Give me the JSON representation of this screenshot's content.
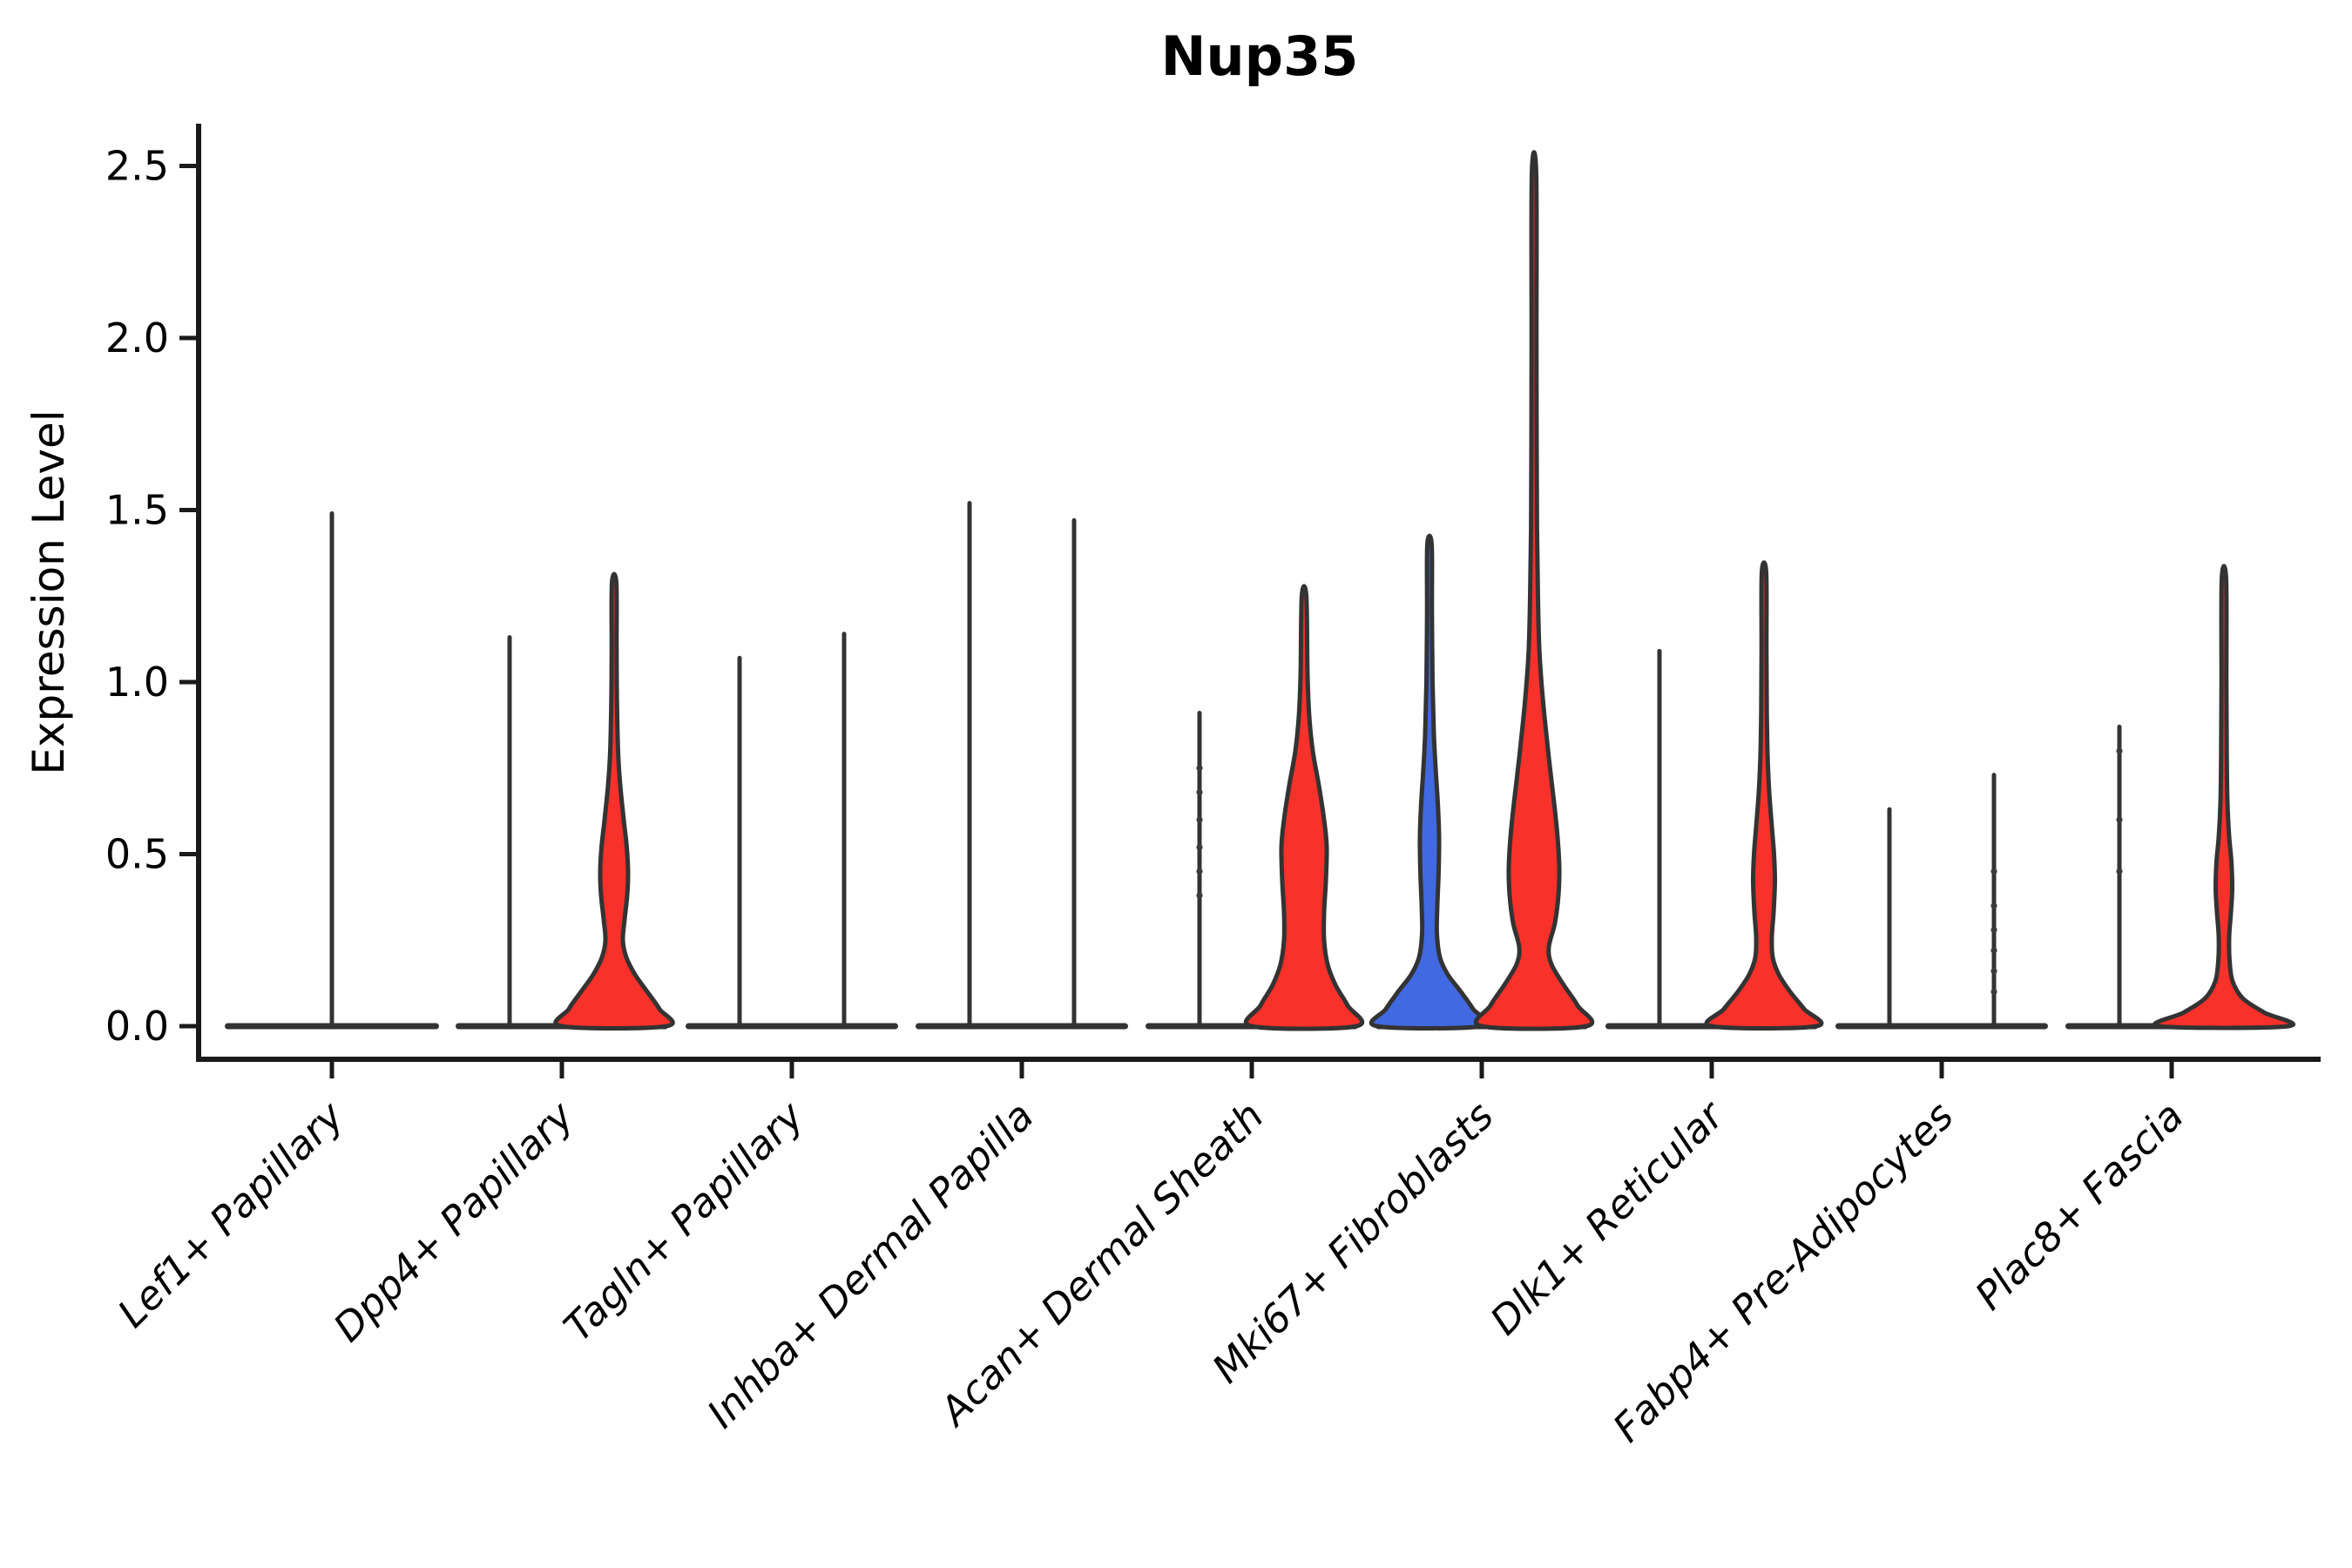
{
  "title": "Nup35",
  "axes": {
    "ylabel": "Expression Level",
    "ytick_labels": [
      "0.0",
      "0.5",
      "1.0",
      "1.5",
      "2.0",
      "2.5"
    ]
  },
  "chart_data": {
    "type": "violin",
    "title": "Nup35",
    "xlabel": "",
    "ylabel": "Expression Level",
    "ylim": [
      -0.095,
      2.62
    ],
    "yticks": [
      0.0,
      0.5,
      1.0,
      1.5,
      2.0,
      2.5
    ],
    "grid": false,
    "legend": "none",
    "colors": {
      "red": "#F8312A",
      "blue": "#4169E1",
      "outline": "#333333",
      "axis": "#1a1a1a"
    },
    "description": "Grouped violin plot of Nup35 expression per fibroblast cluster; each category holds two violins (left/right group). Most violins are collapsed to a thin spike over a flat zero-pancake; filled violins (red or blue) show density bulges. Values below are expression maxima and density half-width profiles [expression_value, half_width_px].",
    "categories": [
      {
        "label": "Lef1+ Papillary",
        "violins": [
          {
            "pos": "center",
            "kind": "spike",
            "fill": null,
            "max": 1.49,
            "dots": []
          }
        ]
      },
      {
        "label": "Dpp4+ Papillary",
        "violins": [
          {
            "pos": "left",
            "kind": "spike",
            "fill": null,
            "max": 1.13,
            "dots": []
          },
          {
            "pos": "right",
            "kind": "violin",
            "fill": "red",
            "max": 1.29,
            "profile": [
              [
                0,
                60
              ],
              [
                0.05,
                52
              ],
              [
                0.1,
                38
              ],
              [
                0.15,
                24
              ],
              [
                0.2,
                14
              ],
              [
                0.25,
                10
              ],
              [
                0.31,
                12
              ],
              [
                0.38,
                15
              ],
              [
                0.45,
                16
              ],
              [
                0.52,
                14.5
              ],
              [
                0.6,
                11
              ],
              [
                0.7,
                7
              ],
              [
                0.8,
                4.5
              ],
              [
                0.95,
                3.2
              ],
              [
                1.1,
                2.8
              ],
              [
                1.29,
                2.5
              ]
            ]
          }
        ]
      },
      {
        "label": "Tagln+ Papillary",
        "violins": [
          {
            "pos": "left",
            "kind": "spike",
            "fill": null,
            "max": 1.07,
            "dots": []
          },
          {
            "pos": "right",
            "kind": "spike",
            "fill": null,
            "max": 1.14,
            "dots": []
          }
        ]
      },
      {
        "label": "Inhba+ Dermal Papilla",
        "violins": [
          {
            "pos": "left",
            "kind": "spike",
            "fill": null,
            "max": 1.52,
            "dots": []
          },
          {
            "pos": "right",
            "kind": "spike",
            "fill": null,
            "max": 1.47,
            "dots": []
          }
        ]
      },
      {
        "label": "Acan+ Dermal Sheath",
        "violins": [
          {
            "pos": "left",
            "kind": "spike",
            "fill": null,
            "max": 0.91,
            "dots": [
              0.38,
              0.45,
              0.52,
              0.6,
              0.68,
              0.75
            ]
          },
          {
            "pos": "right",
            "kind": "violin",
            "fill": "red",
            "max": 1.25,
            "profile": [
              [
                0,
                60
              ],
              [
                0.06,
                50
              ],
              [
                0.12,
                36
              ],
              [
                0.18,
                27
              ],
              [
                0.25,
                23
              ],
              [
                0.33,
                23
              ],
              [
                0.42,
                25
              ],
              [
                0.52,
                26
              ],
              [
                0.6,
                23
              ],
              [
                0.7,
                17
              ],
              [
                0.8,
                10
              ],
              [
                0.9,
                6
              ],
              [
                1.02,
                4
              ],
              [
                1.25,
                2.6
              ]
            ]
          }
        ]
      },
      {
        "label": "Mki67+ Fibroblasts",
        "violins": [
          {
            "pos": "left",
            "kind": "violin",
            "fill": "blue",
            "max": 1.4,
            "profile": [
              [
                0,
                60
              ],
              [
                0.05,
                50
              ],
              [
                0.1,
                36
              ],
              [
                0.15,
                21
              ],
              [
                0.2,
                12
              ],
              [
                0.27,
                8.5
              ],
              [
                0.35,
                9
              ],
              [
                0.45,
                10.5
              ],
              [
                0.55,
                11
              ],
              [
                0.65,
                9.5
              ],
              [
                0.75,
                7
              ],
              [
                0.85,
                5
              ],
              [
                1.0,
                3.5
              ],
              [
                1.2,
                2.8
              ],
              [
                1.4,
                2.5
              ]
            ]
          },
          {
            "pos": "right",
            "kind": "violin",
            "fill": "red",
            "max": 2.48,
            "profile": [
              [
                0,
                60
              ],
              [
                0.06,
                50
              ],
              [
                0.12,
                34
              ],
              [
                0.18,
                20
              ],
              [
                0.23,
                17
              ],
              [
                0.3,
                24
              ],
              [
                0.38,
                28
              ],
              [
                0.46,
                29
              ],
              [
                0.55,
                27
              ],
              [
                0.65,
                23
              ],
              [
                0.78,
                17
              ],
              [
                0.9,
                12
              ],
              [
                1.0,
                8.5
              ],
              [
                1.1,
                6
              ],
              [
                1.25,
                4.5
              ],
              [
                1.45,
                3.4
              ],
              [
                1.7,
                3
              ],
              [
                2.0,
                2.8
              ],
              [
                2.48,
                2.5
              ]
            ]
          }
        ]
      },
      {
        "label": "Dlk1+ Reticular",
        "violins": [
          {
            "pos": "left",
            "kind": "spike",
            "fill": null,
            "max": 1.09,
            "dots": []
          },
          {
            "pos": "right",
            "kind": "violin",
            "fill": "red",
            "max": 1.32,
            "profile": [
              [
                0,
                60
              ],
              [
                0.05,
                46
              ],
              [
                0.1,
                30
              ],
              [
                0.15,
                17
              ],
              [
                0.2,
                10
              ],
              [
                0.26,
                9
              ],
              [
                0.33,
                11
              ],
              [
                0.42,
                12.5
              ],
              [
                0.5,
                11.5
              ],
              [
                0.58,
                9
              ],
              [
                0.68,
                6
              ],
              [
                0.78,
                4.2
              ],
              [
                0.92,
                3.2
              ],
              [
                1.1,
                2.8
              ],
              [
                1.32,
                2.5
              ]
            ]
          }
        ]
      },
      {
        "label": "Fabp4+ Pre-Adipocytes",
        "violins": [
          {
            "pos": "left",
            "kind": "spike",
            "fill": null,
            "max": 0.63,
            "dots": []
          },
          {
            "pos": "right",
            "kind": "spike",
            "fill": null,
            "max": 0.73,
            "dots": [
              0.1,
              0.16,
              0.22,
              0.28,
              0.35,
              0.45
            ]
          }
        ]
      },
      {
        "label": "Plac8+ Fascia",
        "violins": [
          {
            "pos": "left",
            "kind": "spike",
            "fill": null,
            "max": 0.87,
            "dots": [
              0.45,
              0.6,
              0.8
            ]
          },
          {
            "pos": "right",
            "kind": "violin",
            "fill": "red",
            "max": 1.3,
            "profile": [
              [
                0,
                74
              ],
              [
                0.04,
                46
              ],
              [
                0.08,
                22
              ],
              [
                0.13,
                10
              ],
              [
                0.19,
                6.5
              ],
              [
                0.26,
                6
              ],
              [
                0.33,
                8
              ],
              [
                0.4,
                9.5
              ],
              [
                0.48,
                8.5
              ],
              [
                0.55,
                6
              ],
              [
                0.65,
                4
              ],
              [
                0.8,
                3.2
              ],
              [
                1.0,
                2.8
              ],
              [
                1.3,
                2.5
              ]
            ]
          }
        ]
      }
    ]
  }
}
